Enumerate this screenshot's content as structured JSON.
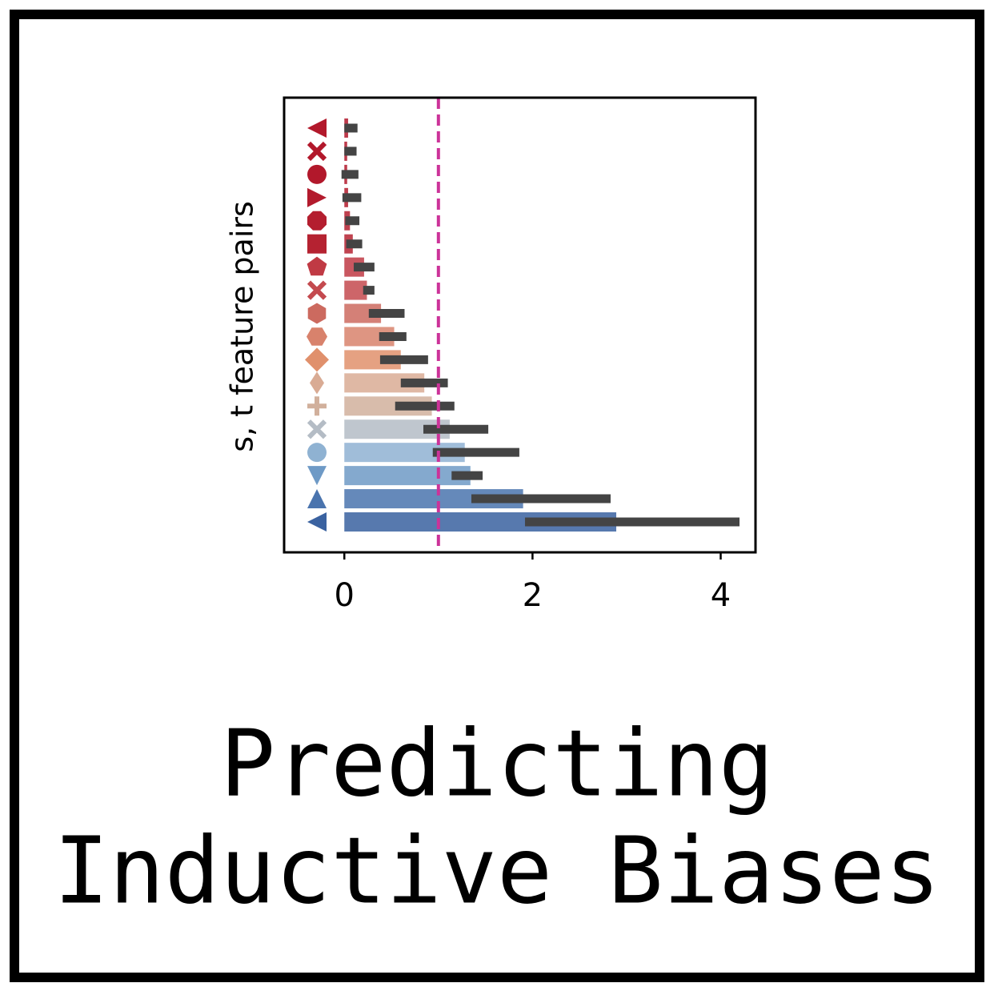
{
  "chart_data": {
    "type": "barh_errorbar",
    "title_lines": [
      "Predicting",
      "Inductive Biases"
    ],
    "ylabel": "s, t feature pairs",
    "categories": [
      null,
      null,
      null,
      null,
      null,
      null,
      null,
      null,
      null,
      null,
      null,
      null,
      null,
      null,
      null,
      null,
      null,
      null
    ],
    "markers": [
      "triangle-left",
      "x",
      "circle",
      "triangle-right",
      "octagon",
      "square",
      "pentagon",
      "x",
      "hexagon",
      "hexagon-flat",
      "diamond",
      "thin-diamond",
      "plus",
      "x",
      "circle",
      "triangle-down",
      "triangle-up",
      "triangle-left"
    ],
    "colors": [
      "#b2182b",
      "#b2182b",
      "#b2182b",
      "#b31b2d",
      "#b41e2f",
      "#b52231",
      "#c03a44",
      "#c44a4f",
      "#cc6a5f",
      "#d8826c",
      "#e0906c",
      "#d9ab94",
      "#d1b09c",
      "#b4bcc5",
      "#8fb2d2",
      "#6e9ac6",
      "#4a74ae",
      "#3a62a0"
    ],
    "values": [
      0.04,
      0.03,
      0.03,
      0.04,
      0.06,
      0.09,
      0.21,
      0.24,
      0.39,
      0.53,
      0.6,
      0.85,
      0.93,
      1.12,
      1.28,
      1.34,
      1.9,
      2.89
    ],
    "ci_low": [
      0.0,
      0.0,
      -0.03,
      -0.02,
      0.01,
      0.02,
      0.1,
      0.2,
      0.26,
      0.37,
      0.38,
      0.6,
      0.54,
      0.84,
      0.94,
      1.14,
      1.35,
      1.92
    ],
    "ci_high": [
      0.14,
      0.13,
      0.15,
      0.18,
      0.16,
      0.19,
      0.32,
      0.32,
      0.64,
      0.66,
      0.89,
      1.1,
      1.17,
      1.53,
      1.86,
      1.47,
      2.83,
      4.2
    ],
    "errorbar_color": "#444444",
    "reference_line": 1,
    "reference_line_color": "#cc3399",
    "xlim": [
      -0.64,
      4.37
    ],
    "xticks": [
      0,
      2,
      4
    ]
  }
}
